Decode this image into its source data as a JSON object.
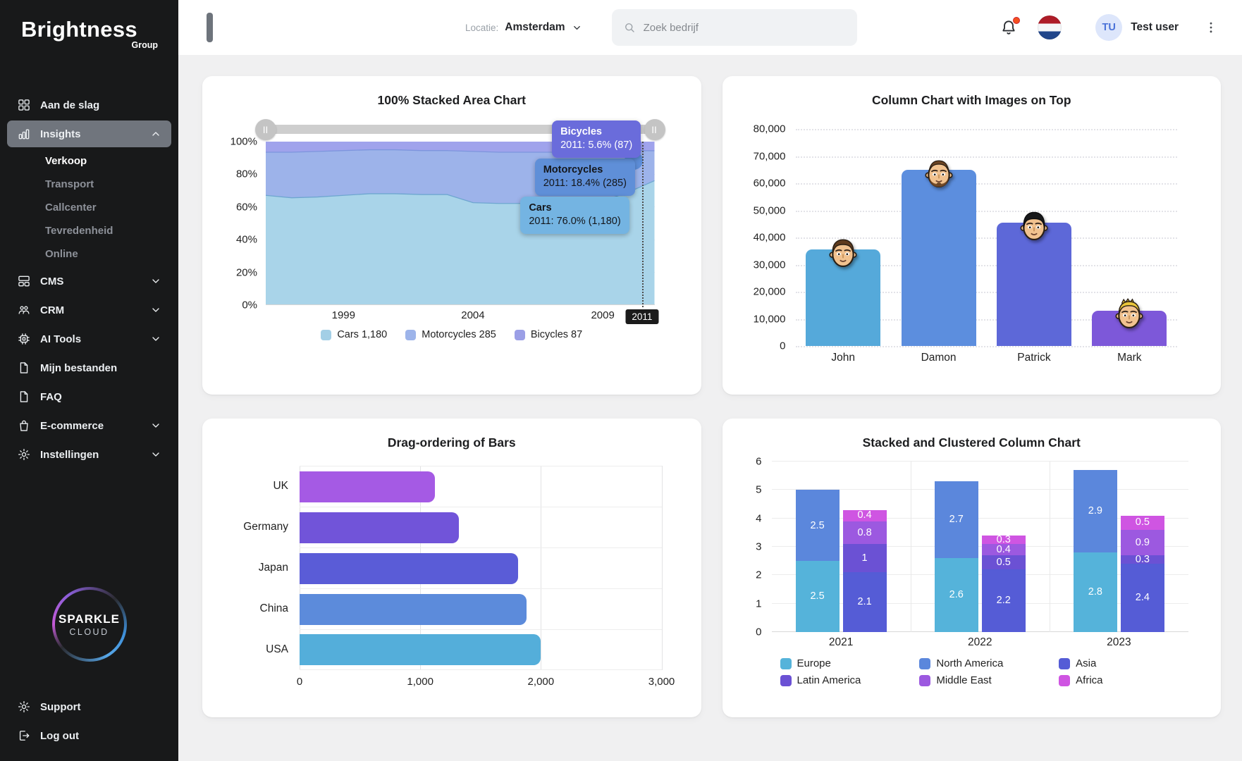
{
  "sidebar": {
    "logo_title": "Brightness",
    "logo_subtitle": "Group",
    "items": [
      {
        "label": "Aan de slag",
        "icon": "grid-icon"
      },
      {
        "label": "Insights",
        "icon": "insights-icon",
        "active": true,
        "chevron": "up",
        "submenu": [
          {
            "label": "Verkoop",
            "active": true
          },
          {
            "label": "Transport"
          },
          {
            "label": "Callcenter"
          },
          {
            "label": "Tevredenheid"
          },
          {
            "label": "Online"
          }
        ]
      },
      {
        "label": "CMS",
        "icon": "cms-icon",
        "chevron": "down"
      },
      {
        "label": "CRM",
        "icon": "crm-icon",
        "chevron": "down"
      },
      {
        "label": "AI Tools",
        "icon": "ai-icon",
        "chevron": "down"
      },
      {
        "label": "Mijn bestanden",
        "icon": "file-icon"
      },
      {
        "label": "FAQ",
        "icon": "file-icon"
      },
      {
        "label": "E-commerce",
        "icon": "bag-icon",
        "chevron": "down"
      },
      {
        "label": "Instellingen",
        "icon": "gear-icon",
        "chevron": "down"
      }
    ],
    "badge_line1": "SPARKLE",
    "badge_line2": "CLOUD",
    "footer_items": [
      {
        "label": "Support",
        "icon": "gear-icon"
      },
      {
        "label": "Log out",
        "icon": "logout-icon"
      }
    ]
  },
  "header": {
    "location_label": "Locatie:",
    "location_value": "Amsterdam",
    "search_placeholder": "Zoek bedrijf",
    "avatar_initials": "TU",
    "user_name": "Test user"
  },
  "chart_data": [
    {
      "type": "area",
      "title": "100% Stacked Area Chart",
      "stacked_100_percent": true,
      "x_years": [
        1996,
        1997,
        1998,
        1999,
        2000,
        2001,
        2002,
        2003,
        2004,
        2005,
        2006,
        2007,
        2008,
        2009,
        2010,
        2011
      ],
      "x_ticks": [
        {
          "label": "1999",
          "pos": 20
        },
        {
          "label": "2004",
          "pos": 53.3
        },
        {
          "label": "2009",
          "pos": 86.7
        }
      ],
      "y_ticks": [
        "100%",
        "80%",
        "60%",
        "40%",
        "20%",
        "0%"
      ],
      "series": [
        {
          "name": "Cars",
          "color": "#a9d4e9",
          "line_color": "#6ea6d0",
          "cum_pct": [
            67,
            65.5,
            66,
            67,
            68,
            68,
            67.5,
            67.5,
            62.5,
            62,
            62,
            61.8,
            62,
            63.5,
            69,
            76
          ]
        },
        {
          "name": "Motorcycles",
          "color": "#9db3ea",
          "line_color": "#7d95dd",
          "cum_pct": [
            93.5,
            93.5,
            94,
            94.5,
            95,
            95,
            94.5,
            94.5,
            94,
            93.5,
            93.5,
            93.5,
            93.5,
            94,
            94.5,
            94.4
          ]
        },
        {
          "name": "Bicycles",
          "color": "#a0a3ec",
          "line_color": "#8f93e2",
          "cum_pct": [
            100,
            100,
            100,
            100,
            100,
            100,
            100,
            100,
            100,
            100,
            100,
            100,
            100,
            100,
            100,
            100
          ]
        }
      ],
      "hover": {
        "year": "2011",
        "line_pos": 96.8,
        "tooltips": [
          {
            "title": "Bicycles",
            "text": "2011: 5.6% (87)",
            "bg": "#6a6cdb",
            "fg": "#ffffff"
          },
          {
            "title": "Motorcycles",
            "text": "2011: 18.4% (285)",
            "bg": "#5f8fd8",
            "fg": "#14161a"
          },
          {
            "title": "Cars",
            "text": "2011: 76.0% (1,180)",
            "bg": "#74b4e2",
            "fg": "#14161a"
          }
        ]
      },
      "legend": [
        {
          "label": "Cars 1,180",
          "color": "#a3cfe6"
        },
        {
          "label": "Motorcycles 285",
          "color": "#9db4ea"
        },
        {
          "label": "Bicycles 87",
          "color": "#9b9fe6"
        }
      ],
      "slider_grip": "||"
    },
    {
      "type": "bar",
      "title": "Column Chart with Images on Top",
      "categories": [
        "John",
        "Damon",
        "Patrick",
        "Mark"
      ],
      "values": [
        35500,
        65000,
        45500,
        13000
      ],
      "colors": [
        "#55a9da",
        "#5c8ede",
        "#5d68d8",
        "#7d58d9"
      ],
      "faces": [
        "john-face",
        "damon-face",
        "patrick-face",
        "mark-face"
      ],
      "ylim": [
        0,
        80000
      ],
      "y_ticks": [
        "80,000",
        "70,000",
        "60,000",
        "50,000",
        "40,000",
        "30,000",
        "20,000",
        "10,000",
        "0"
      ]
    },
    {
      "type": "bar-horizontal",
      "title": "Drag-ordering of Bars",
      "categories": [
        "UK",
        "Germany",
        "Japan",
        "China",
        "USA"
      ],
      "values": [
        1120,
        1320,
        1810,
        1880,
        2000
      ],
      "colors": [
        "#a55ae4",
        "#7154d9",
        "#5a5cd7",
        "#5c8bdb",
        "#54aeda"
      ],
      "xlim": [
        0,
        3000
      ],
      "x_ticks": [
        "0",
        "1,000",
        "2,000",
        "3,000"
      ]
    },
    {
      "type": "stacked-clustered-bar",
      "title": "Stacked and Clustered Column Chart",
      "categories": [
        "2021",
        "2022",
        "2023"
      ],
      "ylim": [
        0,
        6
      ],
      "y_ticks": [
        "0",
        "1",
        "2",
        "3",
        "4",
        "5",
        "6"
      ],
      "stacks": [
        {
          "series": [
            {
              "name": "Europe",
              "color": "#55b3da",
              "values": [
                2.5,
                2.6,
                2.8
              ]
            },
            {
              "name": "North America",
              "color": "#5b87dc",
              "values": [
                2.5,
                2.7,
                2.9
              ]
            }
          ]
        },
        {
          "series": [
            {
              "name": "Asia",
              "color": "#555cd6",
              "values": [
                2.1,
                2.2,
                2.4
              ]
            },
            {
              "name": "Latin America",
              "color": "#6b51d4",
              "values": [
                1,
                0.5,
                0.3
              ]
            },
            {
              "name": "Middle East",
              "color": "#9c59e0",
              "values": [
                0.8,
                0.4,
                0.9
              ]
            },
            {
              "name": "Africa",
              "color": "#cf55e2",
              "values": [
                0.4,
                0.3,
                0.5
              ]
            }
          ]
        }
      ],
      "legend_rows": [
        [
          {
            "label": "Europe",
            "color": "#55b3da"
          },
          {
            "label": "North America",
            "color": "#5b87dc"
          },
          {
            "label": "Asia",
            "color": "#555cd6"
          }
        ],
        [
          {
            "label": "Latin America",
            "color": "#6b51d4"
          },
          {
            "label": "Middle East",
            "color": "#9c59e0"
          },
          {
            "label": "Africa",
            "color": "#cf55e2"
          }
        ]
      ]
    }
  ]
}
